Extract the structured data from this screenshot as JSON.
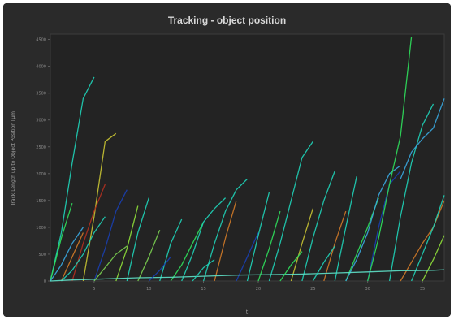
{
  "chart_data": {
    "type": "line",
    "title": "Tracking - object position",
    "xlabel": "t",
    "ylabel": "Track Length up to Object Position [µm]",
    "x_ticks": [
      "5",
      "10",
      "15",
      "20",
      "25",
      "30",
      "35"
    ],
    "y_ticks": [
      "0",
      "500",
      "1000",
      "1500",
      "2000",
      "2500",
      "3000",
      "3500",
      "4000",
      "4500"
    ],
    "xlim": [
      1,
      37
    ],
    "ylim": [
      0,
      4600
    ],
    "grid": false,
    "legend": "none",
    "colors": [
      "#1fd3b8",
      "#2fe05c",
      "#8fe03a",
      "#3aa8e0",
      "#1a3fb0",
      "#c9c433",
      "#d07a28",
      "#b03020",
      "#5ee0c8",
      "#7ad050"
    ],
    "series": [
      {
        "color_index": 0,
        "x": [
          1,
          2,
          3,
          4,
          5
        ],
        "y": [
          0,
          900,
          2200,
          3400,
          3800
        ]
      },
      {
        "color_index": 5,
        "x": [
          4,
          5,
          6,
          7
        ],
        "y": [
          0,
          1200,
          2600,
          2750
        ]
      },
      {
        "color_index": 7,
        "x": [
          3,
          4,
          5,
          6
        ],
        "y": [
          0,
          700,
          1300,
          1800
        ]
      },
      {
        "color_index": 4,
        "x": [
          5,
          6,
          7,
          8
        ],
        "y": [
          0,
          600,
          1300,
          1700
        ]
      },
      {
        "color_index": 1,
        "x": [
          1,
          2,
          3
        ],
        "y": [
          0,
          800,
          1450
        ]
      },
      {
        "color_index": 6,
        "x": [
          2,
          3,
          4
        ],
        "y": [
          0,
          450,
          900
        ]
      },
      {
        "color_index": 3,
        "x": [
          1,
          2,
          3,
          4
        ],
        "y": [
          0,
          300,
          700,
          1000
        ]
      },
      {
        "color_index": 0,
        "x": [
          2,
          3,
          4,
          5,
          6
        ],
        "y": [
          0,
          200,
          500,
          900,
          1200
        ]
      },
      {
        "color_index": 2,
        "x": [
          7,
          8,
          9
        ],
        "y": [
          0,
          600,
          1400
        ]
      },
      {
        "color_index": 0,
        "x": [
          8,
          9,
          10
        ],
        "y": [
          0,
          900,
          1550
        ]
      },
      {
        "color_index": 9,
        "x": [
          9,
          10,
          11
        ],
        "y": [
          0,
          450,
          950
        ]
      },
      {
        "color_index": 0,
        "x": [
          11,
          12,
          13
        ],
        "y": [
          0,
          700,
          1150
        ]
      },
      {
        "color_index": 1,
        "x": [
          12,
          13,
          14,
          15
        ],
        "y": [
          0,
          300,
          700,
          1100
        ]
      },
      {
        "color_index": 0,
        "x": [
          13,
          14,
          15,
          16,
          17
        ],
        "y": [
          0,
          500,
          1100,
          1350,
          1550
        ]
      },
      {
        "color_index": 6,
        "x": [
          16,
          17,
          18
        ],
        "y": [
          0,
          800,
          1500
        ]
      },
      {
        "color_index": 0,
        "x": [
          15,
          16,
          17,
          18,
          19
        ],
        "y": [
          0,
          700,
          1300,
          1700,
          1900
        ]
      },
      {
        "color_index": 4,
        "x": [
          18,
          19,
          20
        ],
        "y": [
          0,
          450,
          900
        ]
      },
      {
        "color_index": 0,
        "x": [
          19,
          20,
          21
        ],
        "y": [
          0,
          850,
          1650
        ]
      },
      {
        "color_index": 1,
        "x": [
          20,
          21,
          22
        ],
        "y": [
          0,
          600,
          1300
        ]
      },
      {
        "color_index": 0,
        "x": [
          21,
          22,
          23,
          24,
          25
        ],
        "y": [
          0,
          700,
          1500,
          2300,
          2600
        ]
      },
      {
        "color_index": 5,
        "x": [
          23,
          24,
          25
        ],
        "y": [
          0,
          700,
          1350
        ]
      },
      {
        "color_index": 0,
        "x": [
          24,
          25,
          26,
          27
        ],
        "y": [
          0,
          800,
          1500,
          2050
        ]
      },
      {
        "color_index": 6,
        "x": [
          26,
          27,
          28
        ],
        "y": [
          0,
          700,
          1300
        ]
      },
      {
        "color_index": 0,
        "x": [
          27,
          28,
          29
        ],
        "y": [
          0,
          1000,
          1950
        ]
      },
      {
        "color_index": 1,
        "x": [
          28,
          29,
          30,
          31
        ],
        "y": [
          0,
          500,
          1000,
          1550
        ]
      },
      {
        "color_index": 3,
        "x": [
          28,
          29,
          30,
          31,
          32,
          33
        ],
        "y": [
          0,
          400,
          900,
          1600,
          2000,
          2150
        ]
      },
      {
        "color_index": 4,
        "x": [
          30,
          31,
          32,
          33
        ],
        "y": [
          0,
          1000,
          1800,
          2050
        ]
      },
      {
        "color_index": 1,
        "x": [
          30,
          31,
          32,
          33,
          34
        ],
        "y": [
          0,
          800,
          1800,
          2700,
          4550
        ]
      },
      {
        "color_index": 0,
        "x": [
          32,
          33,
          34,
          35,
          36
        ],
        "y": [
          0,
          1200,
          2200,
          2900,
          3300
        ]
      },
      {
        "color_index": 3,
        "x": [
          33,
          34,
          35,
          36,
          37
        ],
        "y": [
          1900,
          2400,
          2650,
          2850,
          3400
        ]
      },
      {
        "color_index": 6,
        "x": [
          33,
          34,
          35,
          36,
          37
        ],
        "y": [
          0,
          350,
          700,
          1000,
          1500
        ]
      },
      {
        "color_index": 0,
        "x": [
          34,
          35,
          36,
          37
        ],
        "y": [
          0,
          500,
          1000,
          1600
        ]
      },
      {
        "color_index": 2,
        "x": [
          35,
          36,
          37
        ],
        "y": [
          0,
          400,
          850
        ]
      },
      {
        "color_index": 8,
        "x": [
          1,
          3,
          6,
          9,
          12,
          15,
          18,
          21,
          24,
          27,
          30,
          33,
          36,
          37
        ],
        "y": [
          0,
          20,
          40,
          60,
          70,
          90,
          110,
          120,
          130,
          150,
          170,
          190,
          200,
          210
        ]
      },
      {
        "color_index": 9,
        "x": [
          5,
          6,
          7,
          8
        ],
        "y": [
          0,
          250,
          500,
          650
        ]
      },
      {
        "color_index": 0,
        "x": [
          14,
          15,
          16
        ],
        "y": [
          0,
          250,
          400
        ]
      },
      {
        "color_index": 1,
        "x": [
          22,
          23,
          24
        ],
        "y": [
          0,
          300,
          550
        ]
      },
      {
        "color_index": 0,
        "x": [
          25,
          26,
          27
        ],
        "y": [
          0,
          350,
          650
        ]
      },
      {
        "color_index": 4,
        "x": [
          10,
          11,
          12
        ],
        "y": [
          0,
          200,
          450
        ]
      }
    ]
  }
}
